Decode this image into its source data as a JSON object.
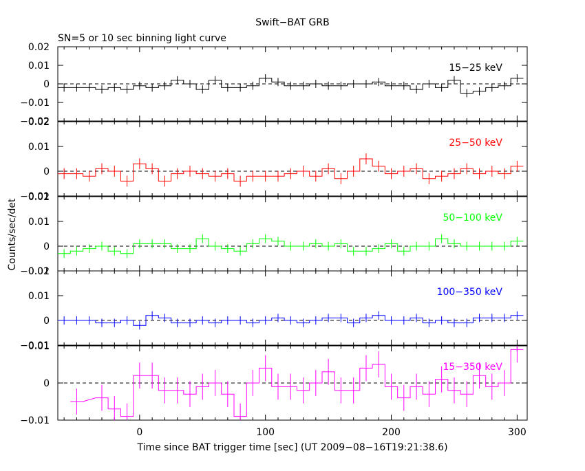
{
  "title": "Swift−BAT GRB",
  "subtitle": "SN=5 or 10 sec binning light curve",
  "ylabel": "Counts/sec/det",
  "xlabel": "Time since BAT trigger time [sec] (UT 2009−08−16T19:21:38.6)",
  "chart_data": {
    "type": "line",
    "title": "Swift−BAT GRB",
    "subtitle": "SN=5 or 10 sec binning light curve",
    "xlabel": "Time since BAT trigger time [sec] (UT 2009−08−16T19:21:38.6)",
    "ylabel": "Counts/sec/det",
    "xlim": [
      -65,
      308
    ],
    "xticks": [
      0,
      100,
      200,
      300
    ],
    "grid": false,
    "reference_line": 0,
    "panels": [
      {
        "name": "15−25 keV",
        "color": "#000000",
        "ylim": [
          -0.02,
          0.02
        ],
        "yticks": [
          {
            "v": 0.02,
            "label": "0.02"
          },
          {
            "v": 0.01,
            "label": "0.01"
          },
          {
            "v": 0,
            "label": "0"
          },
          {
            "v": -0.01,
            "label": "−0.01"
          },
          {
            "v": -0.02,
            "label": "−0.02"
          }
        ],
        "x": [
          -60,
          -50,
          -40,
          -30,
          -20,
          -10,
          0,
          10,
          20,
          30,
          40,
          50,
          60,
          70,
          80,
          90,
          100,
          110,
          120,
          130,
          140,
          150,
          160,
          170,
          180,
          190,
          200,
          210,
          220,
          230,
          240,
          250,
          260,
          270,
          280,
          290,
          300
        ],
        "values": [
          -0.002,
          -0.002,
          -0.002,
          -0.003,
          -0.002,
          -0.003,
          -0.001,
          -0.002,
          -0.001,
          0.002,
          0,
          -0.003,
          0.002,
          -0.002,
          -0.002,
          -0.001,
          0.003,
          0.001,
          -0.001,
          -0.001,
          0,
          -0.001,
          -0.001,
          0,
          0,
          0.001,
          -0.001,
          -0.001,
          -0.003,
          0,
          -0.002,
          0.002,
          -0.005,
          -0.004,
          -0.002,
          -0.001,
          0.003
        ],
        "yerr": 0.0022
      },
      {
        "name": "25−50 keV",
        "color": "#ff0000",
        "ylim": [
          -0.01,
          0.02
        ],
        "yticks": [
          {
            "v": 0.02,
            "label": "0.02"
          },
          {
            "v": 0.01,
            "label": "0.01"
          },
          {
            "v": 0,
            "label": "0"
          },
          {
            "v": -0.01,
            "label": "−0.01"
          }
        ],
        "x": [
          -60,
          -50,
          -40,
          -30,
          -20,
          -10,
          0,
          10,
          20,
          30,
          40,
          50,
          60,
          70,
          80,
          90,
          100,
          110,
          120,
          130,
          140,
          150,
          160,
          170,
          180,
          190,
          200,
          210,
          220,
          230,
          240,
          250,
          260,
          270,
          280,
          290,
          300
        ],
        "values": [
          -0.001,
          -0.001,
          -0.002,
          0.001,
          0,
          -0.004,
          0.003,
          0.001,
          -0.004,
          -0.001,
          0,
          -0.001,
          -0.002,
          -0.001,
          -0.004,
          -0.002,
          -0.002,
          -0.002,
          -0.001,
          0,
          -0.002,
          0.001,
          -0.003,
          0,
          0.005,
          0.002,
          -0.001,
          0,
          0.001,
          -0.003,
          -0.002,
          -0.001,
          0.001,
          -0.001,
          0,
          -0.001,
          0.002
        ],
        "yerr": 0.0022
      },
      {
        "name": "50−100 keV",
        "color": "#00ff00",
        "ylim": [
          -0.01,
          0.02
        ],
        "yticks": [
          {
            "v": 0.02,
            "label": "0.02"
          },
          {
            "v": 0.01,
            "label": "0.01"
          },
          {
            "v": 0,
            "label": "0"
          },
          {
            "v": -0.01,
            "label": "−0.01"
          }
        ],
        "x": [
          -60,
          -50,
          -40,
          -30,
          -20,
          -10,
          0,
          10,
          20,
          30,
          40,
          50,
          60,
          70,
          80,
          90,
          100,
          110,
          120,
          130,
          140,
          150,
          160,
          170,
          180,
          190,
          200,
          210,
          220,
          230,
          240,
          250,
          260,
          270,
          280,
          290,
          300
        ],
        "values": [
          -0.003,
          -0.002,
          -0.001,
          0,
          -0.002,
          -0.003,
          0.001,
          0.001,
          0.001,
          -0.001,
          -0.001,
          0.003,
          0,
          -0.001,
          -0.002,
          0.001,
          0.003,
          0.002,
          0,
          0,
          0.001,
          0,
          0.001,
          -0.002,
          -0.002,
          -0.001,
          0.001,
          -0.002,
          0,
          0,
          0.003,
          0.001,
          0,
          0,
          0,
          0,
          0.002
        ],
        "yerr": 0.0018
      },
      {
        "name": "100−350 keV",
        "color": "#0000ff",
        "ylim": [
          -0.01,
          0.02
        ],
        "yticks": [
          {
            "v": 0.02,
            "label": "0.02"
          },
          {
            "v": 0.01,
            "label": "0.01"
          },
          {
            "v": 0,
            "label": "0"
          },
          {
            "v": -0.01,
            "label": "−0.01"
          }
        ],
        "x": [
          -60,
          -50,
          -40,
          -30,
          -20,
          -10,
          0,
          10,
          20,
          30,
          40,
          50,
          60,
          70,
          80,
          90,
          100,
          110,
          120,
          130,
          140,
          150,
          160,
          170,
          180,
          190,
          200,
          210,
          220,
          230,
          240,
          250,
          260,
          270,
          280,
          290,
          300
        ],
        "values": [
          0,
          0,
          0,
          -0.001,
          -0.001,
          0,
          -0.002,
          0.002,
          0.001,
          -0.001,
          -0.001,
          0,
          -0.001,
          0,
          0,
          -0.001,
          0,
          0.001,
          0,
          -0.001,
          0,
          0.001,
          0.001,
          -0.001,
          0.001,
          0.002,
          0,
          0,
          0.001,
          -0.001,
          0,
          -0.001,
          -0.001,
          0.001,
          0.001,
          0.001,
          0.002
        ],
        "yerr": 0.0017
      },
      {
        "name": "15−350 keV",
        "color": "#ff00ff",
        "ylim": [
          -0.01,
          0.01
        ],
        "yticks": [
          {
            "v": 0.01,
            "label": "0.01"
          },
          {
            "v": 0,
            "label": "0"
          },
          {
            "v": -0.01,
            "label": "−0.01"
          }
        ],
        "x": [
          -50,
          -30,
          -20,
          -10,
          0,
          10,
          20,
          30,
          40,
          50,
          60,
          70,
          80,
          90,
          100,
          110,
          120,
          130,
          140,
          150,
          160,
          170,
          180,
          190,
          200,
          210,
          220,
          230,
          240,
          250,
          260,
          270,
          280,
          290,
          300
        ],
        "values": [
          -0.005,
          -0.004,
          -0.007,
          -0.009,
          0.002,
          0.002,
          -0.002,
          -0.002,
          -0.003,
          -0.001,
          0,
          -0.003,
          -0.009,
          0,
          0.004,
          -0.001,
          -0.001,
          -0.002,
          0,
          0.003,
          -0.002,
          -0.002,
          0.004,
          0.005,
          -0.001,
          -0.004,
          -0.001,
          -0.003,
          0.001,
          -0.002,
          -0.003,
          0.002,
          -0.001,
          0,
          0.009
        ],
        "yerr": 0.0035
      }
    ]
  }
}
